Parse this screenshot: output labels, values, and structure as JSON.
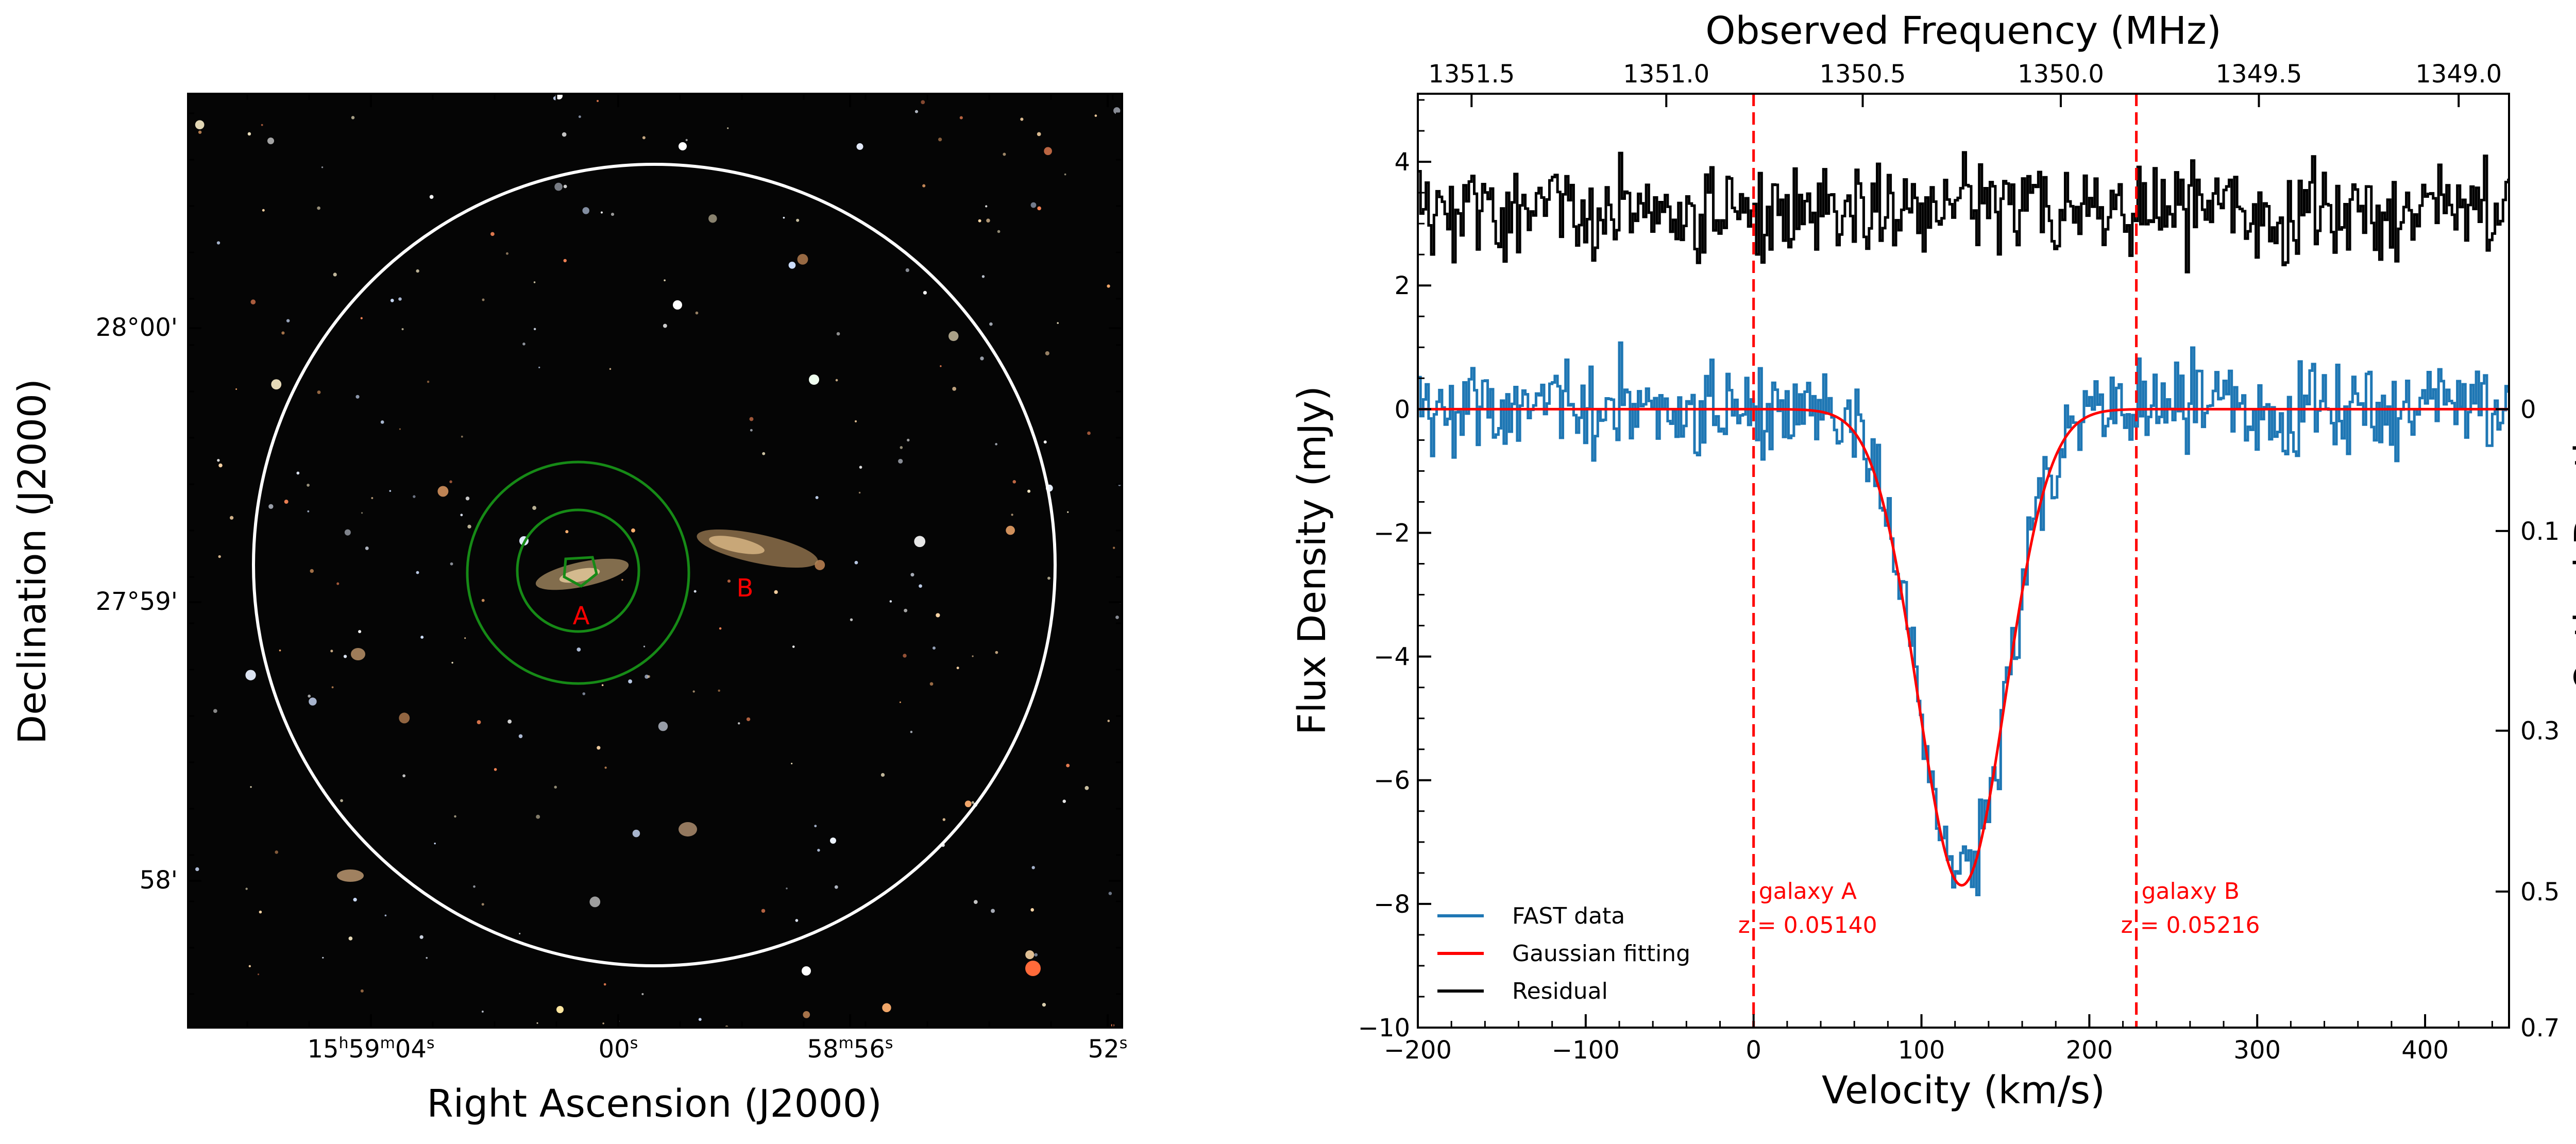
{
  "colors": {
    "fast": "#1f77b4",
    "gauss": "#ff0000",
    "residual": "#000000",
    "marker": "#ff0000",
    "beam": "#ffffff",
    "contour": "#168a16",
    "galaxy_label": "#ff0000"
  },
  "left_panel": {
    "xlabel": "Right Ascension (J2000)",
    "ylabel": "Declination (J2000)",
    "ra_ticks": [
      {
        "label": "15h59m04s",
        "h": "15",
        "m": "59",
        "s": "04"
      },
      {
        "label": "00s",
        "s": "00"
      },
      {
        "label": "58m56s",
        "m": "58",
        "s": "56"
      },
      {
        "label": "52s",
        "s": "52"
      }
    ],
    "dec_ticks": [
      "28°00'",
      "27°59'",
      "58'"
    ],
    "galaxy_labels": [
      "A",
      "B"
    ]
  },
  "chart_data": {
    "type": "line",
    "xlabel": "Velocity (km/s)",
    "ylabel": "Flux Density (mJy)",
    "top_xlabel": "Observed Frequency (MHz)",
    "right_ylabel": "Optical Depth",
    "xlim": [
      -200,
      450
    ],
    "ylim": [
      -10,
      5.1
    ],
    "x_ticks": [
      -200,
      -100,
      0,
      100,
      200,
      300,
      400
    ],
    "x_tick_labels": [
      "−200",
      "−100",
      "0",
      "100",
      "200",
      "300",
      "400"
    ],
    "y_ticks": [
      4,
      2,
      0,
      -2,
      -4,
      -6,
      -8,
      -10
    ],
    "y_tick_labels": [
      "4",
      "2",
      "0",
      "−2",
      "−4",
      "−6",
      "−8",
      "−10"
    ],
    "top_ticks": [
      {
        "label": "1351.5",
        "v": -168
      },
      {
        "label": "1351.0",
        "v": -52
      },
      {
        "label": "1350.5",
        "v": 65
      },
      {
        "label": "1350.0",
        "v": 183
      },
      {
        "label": "1349.5",
        "v": 301
      },
      {
        "label": "1349.0",
        "v": 420
      }
    ],
    "right_ticks": [
      {
        "label": "0",
        "flux": 0
      },
      {
        "label": "0.1",
        "flux": -1.97
      },
      {
        "label": "0.3",
        "flux": -5.2
      },
      {
        "label": "0.5",
        "flux": -7.8
      },
      {
        "label": "0.7",
        "flux": -10.0
      }
    ],
    "gaussian": {
      "amplitude": -7.7,
      "center": 124,
      "sigma": 26
    },
    "residual_offset": 3.2,
    "markers": [
      {
        "x": 0,
        "label1": "galaxy A",
        "label2": "z = 0.05140"
      },
      {
        "x": 228,
        "label1": "galaxy B",
        "label2": "z = 0.05216"
      }
    ],
    "series": [
      {
        "name": "FAST data",
        "color": "#1f77b4"
      },
      {
        "name": "Gaussian fitting",
        "color": "#ff0000"
      },
      {
        "name": "Residual",
        "color": "#000000"
      }
    ],
    "legend_position": "lower-left",
    "grid": false
  }
}
